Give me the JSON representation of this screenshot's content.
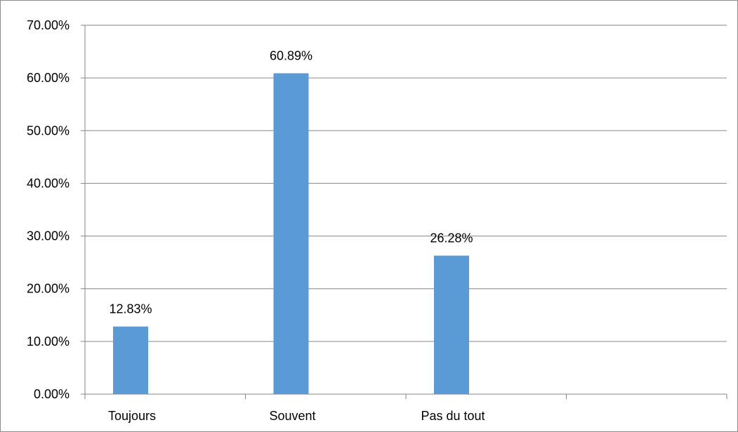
{
  "chart_data": {
    "type": "bar",
    "categories": [
      "Toujours",
      "Souvent",
      "Pas du tout",
      ""
    ],
    "values": [
      12.83,
      60.89,
      26.28,
      null
    ],
    "data_labels": [
      "12.83%",
      "60.89%",
      "26.28%",
      ""
    ],
    "ylim": [
      0,
      70
    ],
    "y_ticks": [
      0,
      10,
      20,
      30,
      40,
      50,
      60,
      70
    ],
    "y_tick_labels": [
      "0.00%",
      "10.00%",
      "20.00%",
      "30.00%",
      "40.00%",
      "50.00%",
      "60.00%",
      "70.00%"
    ],
    "title": "",
    "xlabel": "",
    "ylabel": "",
    "grid": true,
    "legend": "none",
    "colors": {
      "bar": "#5b9bd5",
      "grid": "#868686",
      "axis": "#868686",
      "frame": "#8c8c8c"
    }
  }
}
